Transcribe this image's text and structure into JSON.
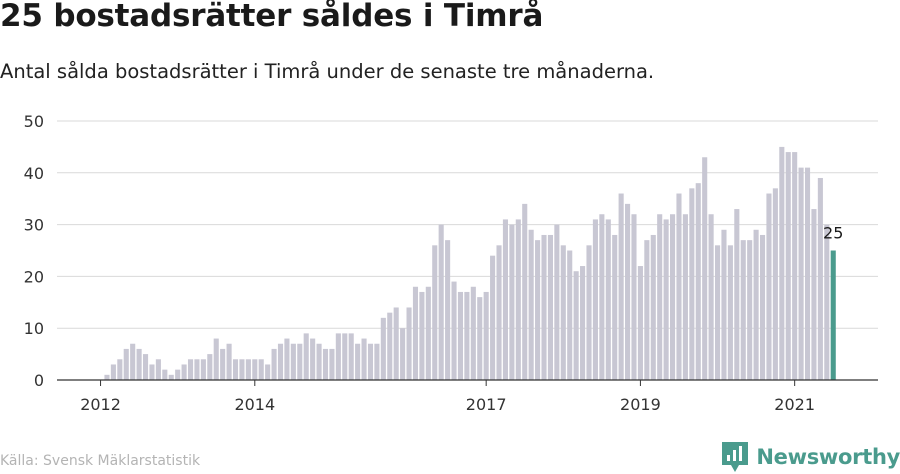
{
  "title": "25 bostadsrätter såldes i Timrå",
  "subtitle": "Antal sålda bostadsrätter i Timrå under de senaste tre månaderna.",
  "source": "Källa: Svensk Mäklarstatistik",
  "brand": {
    "name": "Newsworthy",
    "icon": "newsworthy-logo-icon",
    "color": "#4a9b8d"
  },
  "chart_data": {
    "type": "bar",
    "title": "25 bostadsrätter såldes i Timrå",
    "xlabel": "",
    "ylabel": "",
    "ylim": [
      0,
      50
    ],
    "yticks": [
      0,
      10,
      20,
      30,
      40,
      50
    ],
    "x_tick_labels": [
      {
        "label": "2012",
        "index": 0
      },
      {
        "label": "2014",
        "index": 24
      },
      {
        "label": "2017",
        "index": 60
      },
      {
        "label": "2019",
        "index": 84
      },
      {
        "label": "2021",
        "index": 108
      }
    ],
    "grid": true,
    "colors": {
      "bar": "#c8c7d3",
      "highlight": "#4a9b8d",
      "grid": "#d9d9d9",
      "axis": "#333333"
    },
    "highlight_label": "25",
    "highlight_index": 114,
    "values": [
      0,
      1,
      3,
      4,
      6,
      7,
      6,
      5,
      3,
      4,
      2,
      1,
      2,
      3,
      4,
      4,
      4,
      5,
      8,
      6,
      7,
      4,
      4,
      4,
      4,
      4,
      3,
      6,
      7,
      8,
      7,
      7,
      9,
      8,
      7,
      6,
      6,
      9,
      9,
      9,
      7,
      8,
      7,
      7,
      12,
      13,
      14,
      10,
      14,
      18,
      17,
      18,
      26,
      30,
      27,
      19,
      17,
      17,
      18,
      16,
      17,
      24,
      26,
      31,
      30,
      31,
      34,
      29,
      27,
      28,
      28,
      30,
      26,
      25,
      21,
      22,
      26,
      31,
      32,
      31,
      28,
      36,
      34,
      32,
      22,
      27,
      28,
      32,
      31,
      32,
      36,
      32,
      37,
      38,
      43,
      32,
      26,
      29,
      26,
      33,
      27,
      27,
      29,
      28,
      36,
      37,
      45,
      44,
      44,
      41,
      41,
      33,
      39,
      30,
      25
    ]
  }
}
